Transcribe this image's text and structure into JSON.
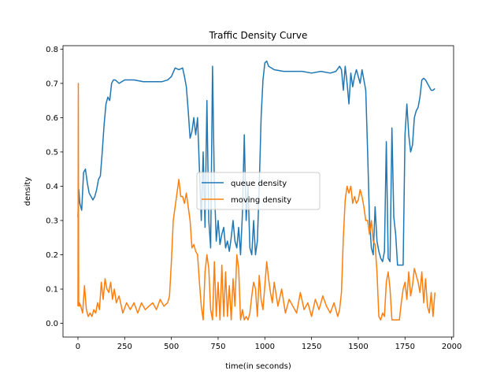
{
  "chart_data": {
    "type": "line",
    "title": "Traffic Density Curve",
    "xlabel": "time(in seconds)",
    "ylabel": "density",
    "xlim": [
      -80,
      2010
    ],
    "ylim": [
      -0.04,
      0.81
    ],
    "xticks": [
      0,
      250,
      500,
      750,
      1000,
      1250,
      1500,
      1750,
      2000
    ],
    "xtick_labels": [
      "0",
      "250",
      "500",
      "750",
      "1000",
      "1250",
      "1500",
      "1750",
      "2000"
    ],
    "yticks": [
      0.0,
      0.1,
      0.2,
      0.3,
      0.4,
      0.5,
      0.6,
      0.7,
      0.8
    ],
    "ytick_labels": [
      "0.0",
      "0.1",
      "0.2",
      "0.3",
      "0.4",
      "0.5",
      "0.6",
      "0.7",
      "0.8"
    ],
    "grid": false,
    "legend_position": "center",
    "series": [
      {
        "name": "queue density",
        "color": "#1f77b4",
        "x": [
          0,
          5,
          10,
          20,
          30,
          40,
          50,
          60,
          70,
          80,
          90,
          100,
          110,
          120,
          130,
          140,
          150,
          160,
          170,
          180,
          190,
          200,
          220,
          250,
          300,
          350,
          400,
          450,
          480,
          500,
          520,
          540,
          560,
          570,
          580,
          590,
          600,
          610,
          620,
          630,
          640,
          650,
          660,
          670,
          680,
          690,
          700,
          710,
          720,
          730,
          740,
          750,
          760,
          770,
          780,
          790,
          800,
          810,
          820,
          830,
          840,
          850,
          860,
          870,
          880,
          890,
          900,
          910,
          920,
          930,
          940,
          950,
          960,
          970,
          980,
          990,
          1000,
          1010,
          1020,
          1050,
          1100,
          1150,
          1200,
          1250,
          1300,
          1350,
          1380,
          1400,
          1410,
          1420,
          1430,
          1440,
          1450,
          1460,
          1470,
          1480,
          1490,
          1500,
          1510,
          1520,
          1530,
          1540,
          1550,
          1560,
          1570,
          1580,
          1590,
          1600,
          1610,
          1620,
          1630,
          1640,
          1650,
          1660,
          1670,
          1680,
          1690,
          1700,
          1710,
          1720,
          1730,
          1740,
          1750,
          1760,
          1770,
          1780,
          1790,
          1800,
          1810,
          1820,
          1830,
          1840,
          1850,
          1860,
          1870,
          1880,
          1890,
          1900,
          1910
        ],
        "y": [
          0.31,
          0.39,
          0.35,
          0.33,
          0.44,
          0.45,
          0.41,
          0.38,
          0.37,
          0.36,
          0.37,
          0.39,
          0.42,
          0.43,
          0.5,
          0.58,
          0.64,
          0.66,
          0.65,
          0.7,
          0.71,
          0.71,
          0.7,
          0.71,
          0.71,
          0.705,
          0.705,
          0.705,
          0.71,
          0.72,
          0.745,
          0.74,
          0.745,
          0.72,
          0.69,
          0.62,
          0.54,
          0.56,
          0.6,
          0.55,
          0.6,
          0.45,
          0.3,
          0.5,
          0.28,
          0.65,
          0.3,
          0.22,
          0.75,
          0.4,
          0.24,
          0.3,
          0.23,
          0.26,
          0.28,
          0.22,
          0.24,
          0.21,
          0.25,
          0.3,
          0.24,
          0.22,
          0.28,
          0.2,
          0.32,
          0.55,
          0.3,
          0.4,
          0.22,
          0.2,
          0.3,
          0.2,
          0.24,
          0.4,
          0.6,
          0.71,
          0.76,
          0.765,
          0.75,
          0.74,
          0.735,
          0.735,
          0.735,
          0.73,
          0.735,
          0.73,
          0.735,
          0.75,
          0.74,
          0.68,
          0.75,
          0.7,
          0.64,
          0.73,
          0.69,
          0.72,
          0.74,
          0.72,
          0.7,
          0.74,
          0.71,
          0.68,
          0.5,
          0.3,
          0.22,
          0.2,
          0.34,
          0.24,
          0.21,
          0.19,
          0.18,
          0.21,
          0.53,
          0.19,
          0.18,
          0.57,
          0.31,
          0.26,
          0.17,
          0.17,
          0.17,
          0.17,
          0.55,
          0.64,
          0.55,
          0.5,
          0.52,
          0.6,
          0.62,
          0.63,
          0.66,
          0.71,
          0.715,
          0.71,
          0.7,
          0.69,
          0.68,
          0.68,
          0.685
        ]
      },
      {
        "name": "moving density",
        "color": "#ff7f0e",
        "x": [
          0,
          2,
          4,
          6,
          8,
          15,
          25,
          35,
          45,
          55,
          65,
          75,
          85,
          95,
          105,
          115,
          125,
          135,
          145,
          155,
          165,
          175,
          185,
          195,
          205,
          220,
          240,
          260,
          280,
          300,
          320,
          340,
          360,
          380,
          400,
          420,
          440,
          460,
          480,
          490,
          500,
          510,
          520,
          530,
          540,
          550,
          560,
          570,
          580,
          590,
          600,
          610,
          620,
          630,
          640,
          650,
          660,
          670,
          680,
          690,
          700,
          710,
          720,
          730,
          740,
          750,
          760,
          770,
          780,
          790,
          800,
          810,
          820,
          830,
          840,
          850,
          860,
          870,
          880,
          890,
          900,
          910,
          920,
          930,
          940,
          950,
          960,
          970,
          980,
          990,
          1000,
          1010,
          1020,
          1030,
          1040,
          1050,
          1070,
          1090,
          1110,
          1130,
          1150,
          1170,
          1190,
          1210,
          1230,
          1250,
          1270,
          1290,
          1310,
          1330,
          1350,
          1370,
          1390,
          1400,
          1410,
          1420,
          1430,
          1440,
          1450,
          1460,
          1470,
          1480,
          1490,
          1500,
          1510,
          1520,
          1530,
          1540,
          1550,
          1560,
          1570,
          1580,
          1590,
          1600,
          1610,
          1620,
          1630,
          1640,
          1650,
          1660,
          1670,
          1680,
          1690,
          1700,
          1710,
          1720,
          1730,
          1740,
          1750,
          1760,
          1770,
          1780,
          1790,
          1800,
          1810,
          1820,
          1830,
          1840,
          1850,
          1860,
          1870,
          1880,
          1890,
          1900,
          1910
        ],
        "y": [
          0.05,
          0.7,
          0.06,
          0.05,
          0.06,
          0.05,
          0.03,
          0.11,
          0.04,
          0.02,
          0.03,
          0.02,
          0.04,
          0.03,
          0.06,
          0.04,
          0.12,
          0.07,
          0.13,
          0.1,
          0.09,
          0.12,
          0.07,
          0.1,
          0.06,
          0.08,
          0.03,
          0.06,
          0.04,
          0.06,
          0.03,
          0.06,
          0.04,
          0.05,
          0.06,
          0.04,
          0.07,
          0.05,
          0.06,
          0.08,
          0.18,
          0.3,
          0.34,
          0.38,
          0.42,
          0.37,
          0.37,
          0.35,
          0.38,
          0.34,
          0.3,
          0.22,
          0.23,
          0.21,
          0.2,
          0.12,
          0.05,
          0.01,
          0.15,
          0.2,
          0.16,
          0.04,
          0.01,
          0.18,
          0.02,
          0.12,
          0.01,
          0.17,
          0.02,
          0.15,
          0.02,
          0.11,
          0.01,
          0.13,
          0.05,
          0.2,
          0.16,
          0.01,
          0.04,
          0.01,
          0.02,
          0.01,
          0.03,
          0.08,
          0.12,
          0.1,
          0.02,
          0.14,
          0.07,
          0.04,
          0.11,
          0.18,
          0.13,
          0.09,
          0.06,
          0.12,
          0.05,
          0.1,
          0.03,
          0.07,
          0.05,
          0.03,
          0.09,
          0.04,
          0.06,
          0.02,
          0.07,
          0.04,
          0.08,
          0.05,
          0.03,
          0.06,
          0.02,
          0.04,
          0.09,
          0.25,
          0.36,
          0.4,
          0.38,
          0.4,
          0.35,
          0.37,
          0.35,
          0.36,
          0.39,
          0.37,
          0.34,
          0.3,
          0.3,
          0.26,
          0.3,
          0.24,
          0.23,
          0.15,
          0.02,
          0.01,
          0.03,
          0.02,
          0.12,
          0.15,
          0.1,
          0.01,
          0.01,
          0.01,
          0.01,
          0.01,
          0.06,
          0.1,
          0.12,
          0.07,
          0.15,
          0.08,
          0.11,
          0.16,
          0.14,
          0.12,
          0.09,
          0.15,
          0.06,
          0.13,
          0.05,
          0.03,
          0.09,
          0.02,
          0.09
        ]
      }
    ]
  }
}
